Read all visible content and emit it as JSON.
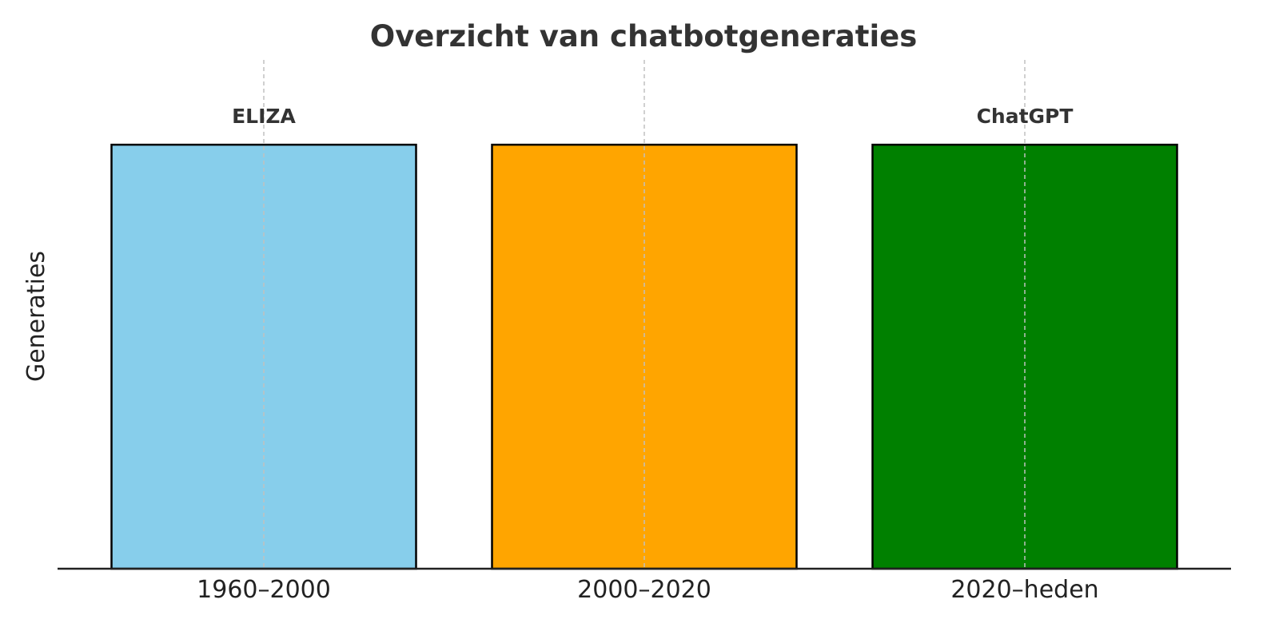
{
  "chart_data": {
    "type": "bar",
    "title": "Overzicht van chatbotgeneraties",
    "xlabel": "",
    "ylabel": "Generaties",
    "categories": [
      "1960–2000",
      "2000–2020",
      "2020–heden"
    ],
    "values": [
      1,
      1,
      1
    ],
    "ylim": [
      0,
      1.2
    ],
    "bar_labels": [
      "ELIZA",
      "",
      "ChatGPT"
    ],
    "colors": [
      "#87CEEB",
      "#FFA500",
      "#008000"
    ],
    "edge_color": "#000000",
    "grid": "x-axis dashed vertical lines",
    "y_ticks_visible": false
  }
}
